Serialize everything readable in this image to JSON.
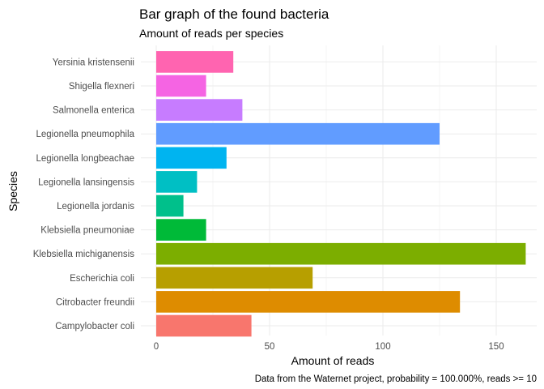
{
  "chart_data": {
    "type": "bar",
    "orientation": "horizontal",
    "title": "Bar graph of the found bacteria",
    "subtitle": "Amount of reads per species",
    "xlabel": "Amount of reads",
    "ylabel": "Species",
    "caption": "Data from the Waternet project, probability = 100.000%, reads >= 10",
    "xlim": [
      0,
      167
    ],
    "xticks": [
      0,
      50,
      100,
      150
    ],
    "grid": true,
    "legend": "none",
    "categories": [
      "Campylobacter coli",
      "Citrobacter freundii",
      "Escherichia coli",
      "Klebsiella michiganensis",
      "Klebsiella pneumoniae",
      "Legionella jordanis",
      "Legionella lansingensis",
      "Legionella longbeachae",
      "Legionella pneumophila",
      "Salmonella enterica",
      "Shigella flexneri",
      "Yersinia kristensenii"
    ],
    "values": [
      42,
      134,
      69,
      163,
      22,
      12,
      18,
      31,
      125,
      38,
      22,
      34
    ],
    "colors": [
      "#F8766D",
      "#DE8C00",
      "#B79F00",
      "#7CAE00",
      "#00BA38",
      "#00C08B",
      "#00BFC4",
      "#00B4F0",
      "#619CFF",
      "#C77CFF",
      "#F564E3",
      "#FF64B0"
    ]
  }
}
